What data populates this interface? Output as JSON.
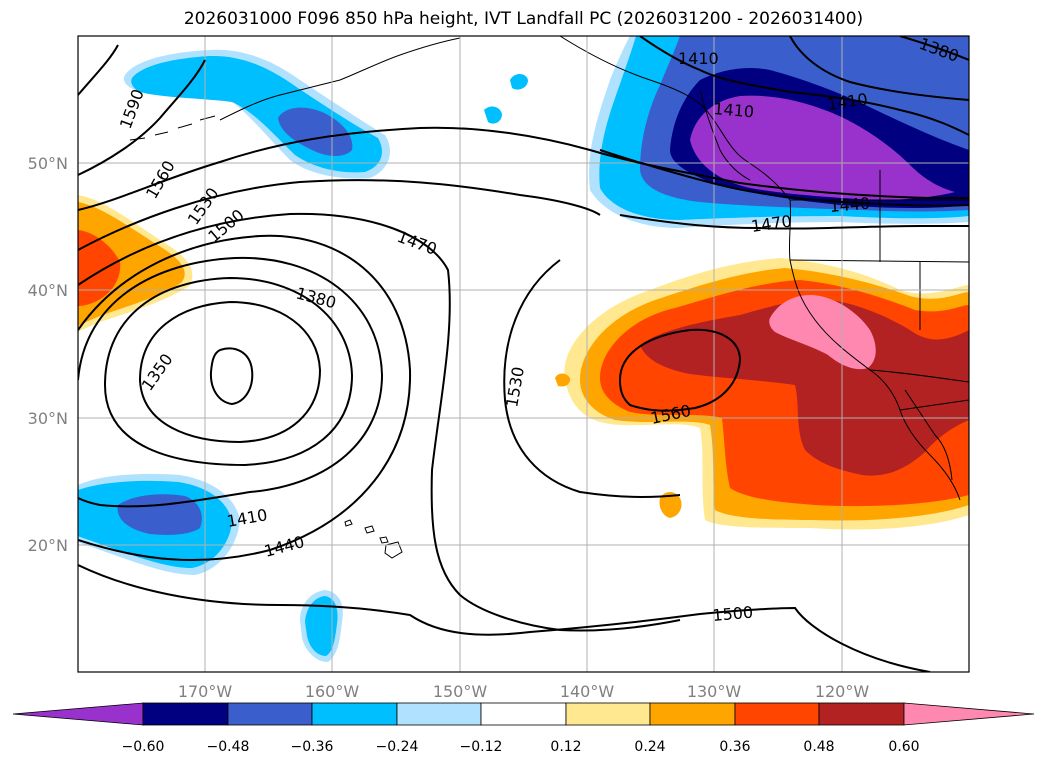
{
  "title": "2026031000 F096 850 hPa height, IVT Landfall PC (2026031200 - 2026031400)",
  "axes": {
    "lat_labels": [
      "50°N",
      "40°N",
      "30°N",
      "20°N"
    ],
    "lon_labels": [
      "170°W",
      "160°W",
      "150°W",
      "140°W",
      "130°W",
      "120°W"
    ],
    "lon_range": [
      180,
      110
    ],
    "lat_range": [
      10,
      60
    ],
    "grid": true
  },
  "colorbar": {
    "labels": [
      "−0.60",
      "−0.48",
      "−0.36",
      "−0.24",
      "−0.12",
      "0.12",
      "0.24",
      "0.36",
      "0.48",
      "0.60"
    ],
    "colors": [
      "#9932cc",
      "#000080",
      "#3a5fcd",
      "#00bfff",
      "#b0e2ff",
      "#ffffff",
      "#ffe890",
      "#ffa500",
      "#ff4500",
      "#b22222",
      "#ff88b0"
    ],
    "extend": "both"
  },
  "contour_labels": [
    "1590",
    "1560",
    "1530",
    "1500",
    "1470",
    "1380",
    "1350",
    "1410",
    "1440",
    "1530",
    "1560",
    "1500",
    "1410",
    "1410",
    "1410",
    "1440",
    "1470",
    "1380"
  ]
}
